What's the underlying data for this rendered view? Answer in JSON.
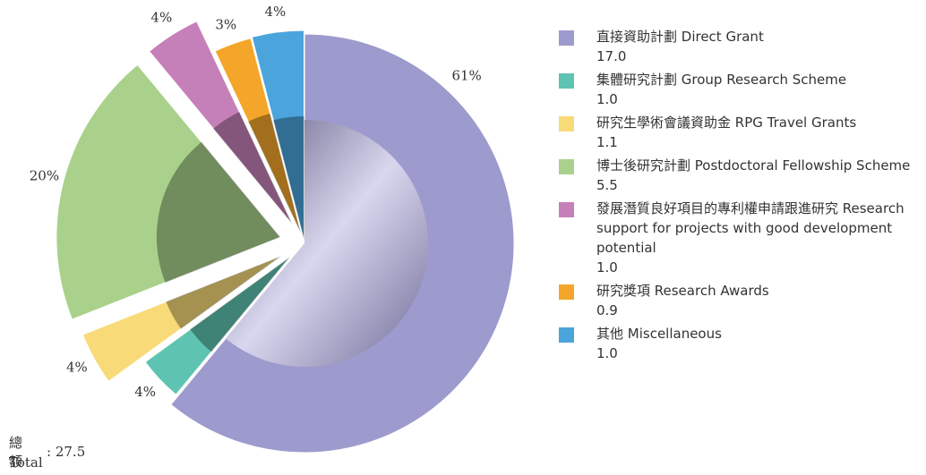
{
  "chart_data": {
    "type": "pie",
    "categories": [
      "直接資助計劃 Direct Grant",
      "集體研究計劃 Group Research Scheme",
      "研究生學術會議資助金 RPG Travel Grants",
      "博士後研究計劃 Postdoctoral Fellowship Scheme",
      "發展潛質良好項目的專利權申請跟進研究 Research support for projects with good development potential",
      "研究獎項 Research Awards",
      "其他 Miscellaneous"
    ],
    "values": [
      61,
      4,
      4,
      20,
      4,
      3,
      4
    ],
    "value_labels": [
      "61%",
      "4%",
      "4%",
      "20%",
      "4%",
      "3%",
      "4%"
    ],
    "amounts": [
      "17.0",
      "1.0",
      "1.1",
      "5.5",
      "1.0",
      "0.9",
      "1.0"
    ],
    "colors": [
      "#9d9acd",
      "#5ec4b1",
      "#f8da78",
      "#a9d18b",
      "#c680b9",
      "#f4a62a",
      "#4ba4dc"
    ],
    "total": {
      "zh": "總額",
      "en": "Total",
      "separator": ":",
      "value": "27.5"
    }
  }
}
